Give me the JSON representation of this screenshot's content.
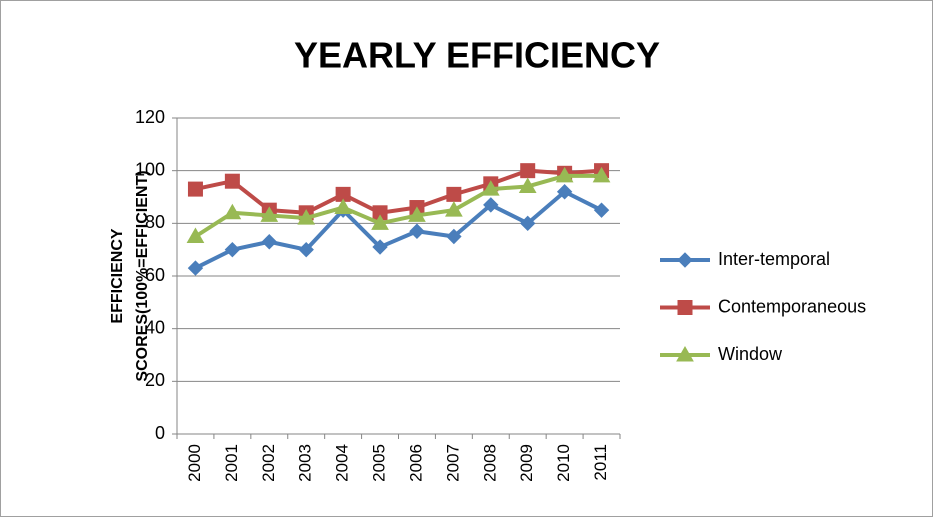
{
  "chart_data": {
    "type": "line",
    "title": "YEARLY EFFICIENCY",
    "ylabel": [
      "EFFICIENCY",
      "SCORES(100%=EFFICIENT)"
    ],
    "categories": [
      "2000",
      "2001",
      "2002",
      "2003",
      "2004",
      "2005",
      "2006",
      "2007",
      "2008",
      "2009",
      "2010",
      "2011"
    ],
    "series": [
      {
        "name": "Inter-temporal",
        "color": "#4a7ebb",
        "marker": "diamond",
        "values": [
          63,
          70,
          73,
          70,
          85,
          71,
          77,
          75,
          87,
          80,
          92,
          85
        ]
      },
      {
        "name": "Contemporaneous",
        "color": "#be4b48",
        "marker": "square",
        "values": [
          93,
          96,
          85,
          84,
          91,
          84,
          86,
          91,
          95,
          100,
          99,
          100
        ]
      },
      {
        "name": "Window",
        "color": "#98b954",
        "marker": "triangle",
        "values": [
          75,
          84,
          83,
          82,
          86,
          80,
          83,
          85,
          93,
          94,
          98,
          98
        ]
      }
    ],
    "ylim": [
      0,
      120
    ],
    "yticks": [
      0,
      20,
      40,
      60,
      80,
      100,
      120
    ],
    "grid": true,
    "legend": "right"
  }
}
